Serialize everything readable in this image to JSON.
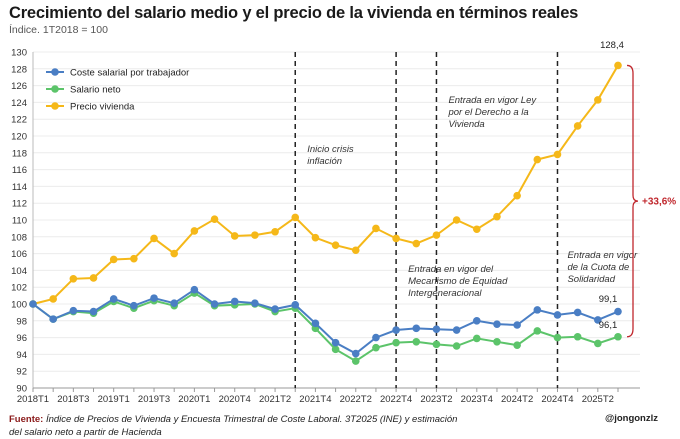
{
  "chart_data": {
    "type": "line",
    "title": "Crecimiento del salario medio y el precio de la vivienda en términos reales",
    "subtitle": "Índice. 1T2018 = 100",
    "x_tick_labels": [
      "2018T1",
      "2018T3",
      "2019T1",
      "2019T3",
      "2020T1",
      "2020T4",
      "2021T2",
      "2021T4",
      "2022T2",
      "2022T4",
      "2023T2",
      "2023T4",
      "2024T2",
      "2024T4",
      "2025T2"
    ],
    "ylim": [
      90,
      130
    ],
    "y_ticks": [
      90,
      92,
      94,
      96,
      98,
      100,
      102,
      104,
      106,
      108,
      110,
      112,
      114,
      116,
      118,
      120,
      122,
      124,
      126,
      128,
      130
    ],
    "grid": true,
    "legend_placement": "top-left",
    "series": [
      {
        "name": "Coste salarial por trabajador",
        "color": "#4a7ec4",
        "values": [
          100,
          98.2,
          99.2,
          99.1,
          100.6,
          99.8,
          100.7,
          100.1,
          101.7,
          100.0,
          100.3,
          100.1,
          99.4,
          99.9,
          97.7,
          95.4,
          94.1,
          96.0,
          96.9,
          97.1,
          97.0,
          96.9,
          98.0,
          97.6,
          97.5,
          99.3,
          98.7,
          99.0,
          98.1,
          99.1
        ]
      },
      {
        "name": "Salario neto",
        "color": "#5cc46a",
        "values": [
          100,
          98.2,
          99.1,
          98.9,
          100.3,
          99.5,
          100.4,
          99.8,
          101.3,
          99.8,
          99.9,
          100.0,
          99.1,
          99.5,
          97.1,
          94.6,
          93.2,
          94.8,
          95.4,
          95.5,
          95.2,
          95.0,
          95.9,
          95.5,
          95.1,
          96.8,
          96.0,
          96.1,
          95.3,
          96.1
        ]
      },
      {
        "name": "Precio vivienda",
        "color": "#f5b819",
        "values": [
          100,
          100.6,
          103.0,
          103.1,
          105.3,
          105.4,
          107.8,
          106.0,
          108.7,
          110.1,
          108.1,
          108.2,
          108.6,
          110.3,
          107.9,
          107.0,
          106.4,
          109.0,
          107.8,
          107.2,
          108.2,
          110.0,
          108.9,
          110.4,
          112.9,
          117.2,
          117.8,
          121.2,
          124.3,
          128.4
        ]
      }
    ],
    "data_labels": {
      "precio_last": "128,4",
      "coste_last": "99,1",
      "neto_last": "96,1"
    },
    "gap_annotation": {
      "label": "+33,6%",
      "color": "#c0272d"
    },
    "events": [
      {
        "index": 13,
        "label": [
          "Inicio crisis",
          "inflación"
        ]
      },
      {
        "index": 18,
        "label": [
          "Entrada en vigor del",
          "Mecanismo de Equidad",
          "Intergeneracional"
        ]
      },
      {
        "index": 20,
        "label": [
          "Entrada en vigor Ley",
          "por el Derecho a la",
          "Vivienda"
        ]
      },
      {
        "index": 26,
        "label": [
          "Entrada en vigor",
          "de la Cuota de",
          "Solidaridad"
        ]
      }
    ]
  },
  "footer": {
    "source_label": "Fuente:",
    "source_text": "Índice de Precios de Vivienda y Encuesta Trimestral de Coste Laboral. 3T2025 (INE) y estimación",
    "source_text2": "del salario neto a partir de Hacienda",
    "handle": "@jongonzlz"
  }
}
